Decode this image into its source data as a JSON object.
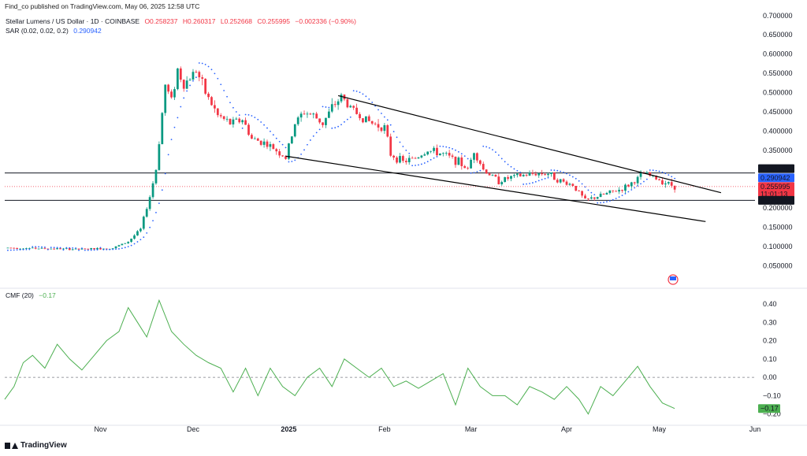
{
  "header": {
    "published": "Find_co published on TradingView.com, May 06, 2025 12:58 UTC"
  },
  "legend": {
    "symbol": "Stellar Lumens / US Dollar · 1D · COINBASE",
    "open": "O0.258237",
    "high": "H0.260317",
    "low": "L0.252668",
    "close": "C0.255995",
    "change": "−0.002336 (−0.90%)",
    "sar_label": "SAR (0.02, 0.02, 0.2)",
    "sar_value": "0.290942",
    "cmf_label": "CMF (20)",
    "cmf_value": "−0.17"
  },
  "footer": {
    "brand": "TradingView"
  },
  "colors": {
    "up": "#089981",
    "down": "#f23645",
    "sar": "#2962ff",
    "cmf": "#4caf50",
    "channel": "#000000"
  },
  "chart_data": [
    {
      "type": "candlestick",
      "title": "Stellar Lumens / US Dollar · 1D · COINBASE",
      "y_ticks": [
        "0.700000",
        "0.650000",
        "0.600000",
        "0.550000",
        "0.500000",
        "0.450000",
        "0.400000",
        "0.350000",
        "0.300000",
        "0.250000",
        "0.200000",
        "0.150000",
        "0.100000",
        "0.050000"
      ],
      "y_tick_values": [
        0.7,
        0.65,
        0.6,
        0.55,
        0.5,
        0.45,
        0.4,
        0.35,
        0.3,
        0.25,
        0.2,
        0.15,
        0.1,
        0.05
      ],
      "ylim": [
        0.0,
        0.72
      ],
      "x_ticks": [
        "Nov",
        "Dec",
        "2025",
        "Feb",
        "Mar",
        "Apr",
        "May",
        "Jun"
      ],
      "x_tick_dates": [
        "2024-11-01",
        "2024-12-01",
        "2025-01-01",
        "2025-02-01",
        "2025-03-01",
        "2025-04-01",
        "2025-05-01",
        "2025-06-01"
      ],
      "xlim": [
        "2024-10-01",
        "2025-06-01"
      ],
      "price_labels": [
        {
          "text": "0.291125",
          "value": 0.291125,
          "bg": "#131722",
          "fg": "#ffffff"
        },
        {
          "text": "0.290942",
          "value": 0.290942,
          "bg": "#2962ff",
          "fg": "#ffffff"
        },
        {
          "text": "0.255995",
          "value": 0.255995,
          "bg": "#f23645",
          "fg": "#ffffff",
          "sub": "11:01:13"
        },
        {
          "text": "0.220058",
          "value": 0.220058,
          "bg": "#131722",
          "fg": "#ffffff"
        }
      ],
      "horizontal_lines": [
        0.291125,
        0.220058
      ],
      "current_price": 0.255995,
      "channel": [
        {
          "from": [
            "2025-01-17",
            0.492
          ],
          "to": [
            "2025-05-21",
            0.24
          ]
        },
        {
          "from": [
            "2024-12-31",
            0.335
          ],
          "to": [
            "2025-05-16",
            0.165
          ]
        }
      ],
      "close_path": [
        [
          "2024-10-01",
          0.097
        ],
        [
          "2024-10-15",
          0.095
        ],
        [
          "2024-10-25",
          0.093
        ],
        [
          "2024-11-05",
          0.096
        ],
        [
          "2024-11-10",
          0.113
        ],
        [
          "2024-11-14",
          0.145
        ],
        [
          "2024-11-17",
          0.23
        ],
        [
          "2024-11-19",
          0.3
        ],
        [
          "2024-11-22",
          0.52
        ],
        [
          "2024-11-24",
          0.48
        ],
        [
          "2024-11-26",
          0.56
        ],
        [
          "2024-11-28",
          0.52
        ],
        [
          "2024-12-02",
          0.56
        ],
        [
          "2024-12-05",
          0.5
        ],
        [
          "2024-12-09",
          0.44
        ],
        [
          "2024-12-13",
          0.42
        ],
        [
          "2024-12-17",
          0.43
        ],
        [
          "2024-12-20",
          0.38
        ],
        [
          "2024-12-24",
          0.37
        ],
        [
          "2024-12-28",
          0.35
        ],
        [
          "2024-12-31",
          0.33
        ],
        [
          "2025-01-03",
          0.42
        ],
        [
          "2025-01-06",
          0.45
        ],
        [
          "2025-01-09",
          0.44
        ],
        [
          "2025-01-12",
          0.42
        ],
        [
          "2025-01-15",
          0.46
        ],
        [
          "2025-01-18",
          0.49
        ],
        [
          "2025-01-21",
          0.46
        ],
        [
          "2025-01-24",
          0.44
        ],
        [
          "2025-01-28",
          0.42
        ],
        [
          "2025-02-01",
          0.41
        ],
        [
          "2025-02-03",
          0.34
        ],
        [
          "2025-02-07",
          0.32
        ],
        [
          "2025-02-11",
          0.33
        ],
        [
          "2025-02-15",
          0.35
        ],
        [
          "2025-02-20",
          0.34
        ],
        [
          "2025-02-25",
          0.32
        ],
        [
          "2025-02-28",
          0.3
        ],
        [
          "2025-03-02",
          0.35
        ],
        [
          "2025-03-05",
          0.3
        ],
        [
          "2025-03-10",
          0.27
        ],
        [
          "2025-03-14",
          0.28
        ],
        [
          "2025-03-18",
          0.285
        ],
        [
          "2025-03-22",
          0.29
        ],
        [
          "2025-03-26",
          0.29
        ],
        [
          "2025-03-30",
          0.27
        ],
        [
          "2025-04-03",
          0.26
        ],
        [
          "2025-04-07",
          0.22
        ],
        [
          "2025-04-11",
          0.23
        ],
        [
          "2025-04-15",
          0.24
        ],
        [
          "2025-04-19",
          0.25
        ],
        [
          "2025-04-23",
          0.27
        ],
        [
          "2025-04-26",
          0.29
        ],
        [
          "2025-04-29",
          0.28
        ],
        [
          "2025-05-02",
          0.27
        ],
        [
          "2025-05-06",
          0.256
        ]
      ]
    },
    {
      "type": "line",
      "title": "CMF (20)",
      "y_ticks": [
        "0.40",
        "0.30",
        "0.20",
        "0.10",
        "0.00",
        "−0.10",
        "−0.20"
      ],
      "y_tick_values": [
        0.4,
        0.3,
        0.2,
        0.1,
        0.0,
        -0.1,
        -0.2
      ],
      "ylim": [
        -0.24,
        0.46
      ],
      "current_value": -0.17,
      "current_label": "−0.17",
      "series": [
        {
          "values": [
            [
              "2024-10-01",
              -0.12
            ],
            [
              "2024-10-04",
              -0.05
            ],
            [
              "2024-10-07",
              0.08
            ],
            [
              "2024-10-10",
              0.12
            ],
            [
              "2024-10-14",
              0.05
            ],
            [
              "2024-10-18",
              0.18
            ],
            [
              "2024-10-22",
              0.1
            ],
            [
              "2024-10-26",
              0.04
            ],
            [
              "2024-10-30",
              0.12
            ],
            [
              "2024-11-03",
              0.2
            ],
            [
              "2024-11-07",
              0.25
            ],
            [
              "2024-11-10",
              0.38
            ],
            [
              "2024-11-13",
              0.3
            ],
            [
              "2024-11-16",
              0.22
            ],
            [
              "2024-11-20",
              0.42
            ],
            [
              "2024-11-24",
              0.25
            ],
            [
              "2024-11-28",
              0.18
            ],
            [
              "2024-12-02",
              0.12
            ],
            [
              "2024-12-06",
              0.08
            ],
            [
              "2024-12-10",
              0.05
            ],
            [
              "2024-12-14",
              -0.08
            ],
            [
              "2024-12-18",
              0.05
            ],
            [
              "2024-12-22",
              -0.1
            ],
            [
              "2024-12-26",
              0.05
            ],
            [
              "2024-12-30",
              -0.05
            ],
            [
              "2025-01-03",
              -0.1
            ],
            [
              "2025-01-07",
              0.0
            ],
            [
              "2025-01-11",
              0.05
            ],
            [
              "2025-01-15",
              -0.05
            ],
            [
              "2025-01-19",
              0.1
            ],
            [
              "2025-01-23",
              0.05
            ],
            [
              "2025-01-27",
              0.0
            ],
            [
              "2025-01-31",
              0.05
            ],
            [
              "2025-02-04",
              -0.05
            ],
            [
              "2025-02-08",
              -0.02
            ],
            [
              "2025-02-12",
              -0.06
            ],
            [
              "2025-02-16",
              -0.02
            ],
            [
              "2025-02-20",
              0.02
            ],
            [
              "2025-02-24",
              -0.15
            ],
            [
              "2025-02-28",
              0.05
            ],
            [
              "2025-03-04",
              -0.05
            ],
            [
              "2025-03-08",
              -0.1
            ],
            [
              "2025-03-12",
              -0.1
            ],
            [
              "2025-03-16",
              -0.15
            ],
            [
              "2025-03-20",
              -0.05
            ],
            [
              "2025-03-24",
              -0.08
            ],
            [
              "2025-03-28",
              -0.12
            ],
            [
              "2025-04-01",
              -0.05
            ],
            [
              "2025-04-05",
              -0.12
            ],
            [
              "2025-04-08",
              -0.2
            ],
            [
              "2025-04-12",
              -0.05
            ],
            [
              "2025-04-16",
              -0.1
            ],
            [
              "2025-04-20",
              -0.02
            ],
            [
              "2025-04-24",
              0.06
            ],
            [
              "2025-04-28",
              -0.05
            ],
            [
              "2025-05-02",
              -0.14
            ],
            [
              "2025-05-06",
              -0.17
            ]
          ]
        }
      ]
    }
  ]
}
